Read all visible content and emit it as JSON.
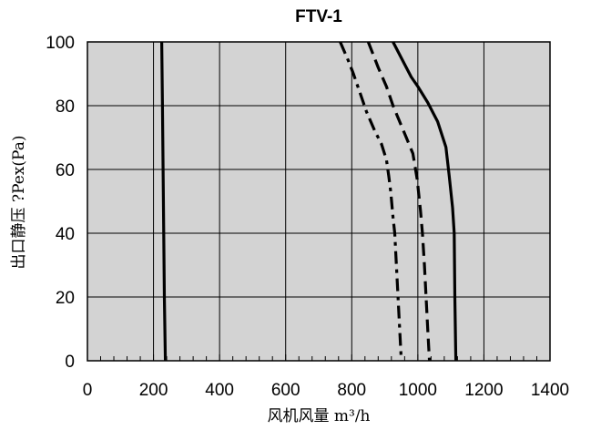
{
  "chart_data": {
    "type": "line",
    "title": "FTV-1",
    "xlabel": "风机风量  m³/h",
    "ylabel": "出口静压   ?Pex(Pa)",
    "xlim": [
      0,
      1400
    ],
    "ylim": [
      0,
      100
    ],
    "x_ticks": [
      0,
      200,
      400,
      600,
      800,
      1000,
      1200,
      1400
    ],
    "y_ticks": [
      0,
      20,
      40,
      60,
      80,
      100
    ],
    "grid": true,
    "background_color": "#d3d3d3",
    "series": [
      {
        "style": "solid",
        "points": [
          [
            225,
            100
          ],
          [
            227,
            80
          ],
          [
            229,
            60
          ],
          [
            231,
            40
          ],
          [
            233,
            20
          ],
          [
            236,
            0
          ]
        ]
      },
      {
        "style": "solid",
        "points": [
          [
            925,
            100
          ],
          [
            960,
            93
          ],
          [
            980,
            89
          ],
          [
            1000,
            86
          ],
          [
            1030,
            81
          ],
          [
            1060,
            75
          ],
          [
            1085,
            67
          ],
          [
            1095,
            58
          ],
          [
            1105,
            48
          ],
          [
            1110,
            40
          ],
          [
            1112,
            20
          ],
          [
            1115,
            0
          ]
        ]
      },
      {
        "style": "dashed",
        "points": [
          [
            850,
            100
          ],
          [
            880,
            92
          ],
          [
            905,
            86
          ],
          [
            925,
            80
          ],
          [
            945,
            75
          ],
          [
            965,
            70
          ],
          [
            985,
            65
          ],
          [
            998,
            57
          ],
          [
            1008,
            47
          ],
          [
            1014,
            40
          ],
          [
            1020,
            30
          ],
          [
            1025,
            20
          ],
          [
            1030,
            10
          ],
          [
            1035,
            0
          ]
        ]
      },
      {
        "style": "dashdot",
        "points": [
          [
            765,
            100
          ],
          [
            790,
            94
          ],
          [
            805,
            90
          ],
          [
            825,
            84
          ],
          [
            845,
            78
          ],
          [
            870,
            72
          ],
          [
            890,
            68
          ],
          [
            905,
            63
          ],
          [
            912,
            58
          ],
          [
            918,
            53
          ],
          [
            925,
            45
          ],
          [
            930,
            40
          ],
          [
            935,
            30
          ],
          [
            940,
            20
          ],
          [
            945,
            10
          ],
          [
            950,
            0
          ]
        ]
      }
    ]
  }
}
